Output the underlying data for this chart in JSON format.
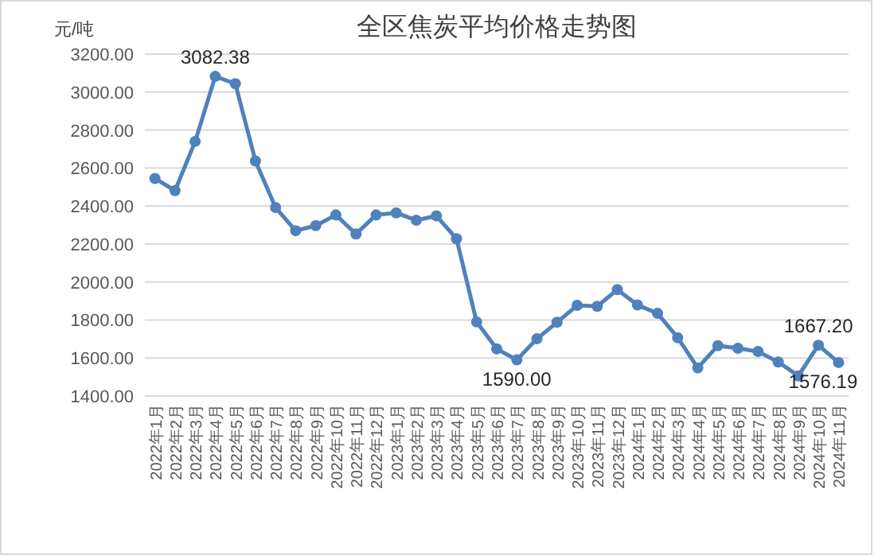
{
  "chart_data": {
    "type": "line",
    "title": "全区焦炭平均价格走势图",
    "ylabel": "元/吨",
    "categories": [
      "2022年1月",
      "2022年2月",
      "2022年3月",
      "2022年4月",
      "2022年5月",
      "2022年6月",
      "2022年7月",
      "2022年8月",
      "2022年9月",
      "2022年10月",
      "2022年11月",
      "2022年12月",
      "2023年1月",
      "2023年2月",
      "2023年3月",
      "2023年4月",
      "2023年5月",
      "2023年6月",
      "2023年7月",
      "2023年8月",
      "2023年9月",
      "2023年10月",
      "2023年11月",
      "2023年12月",
      "2024年1月",
      "2024年2月",
      "2024年3月",
      "2024年4月",
      "2024年5月",
      "2024年6月",
      "2024年7月",
      "2024年8月",
      "2024年9月",
      "2024年10月",
      "2024年11月"
    ],
    "values": [
      2545,
      2481,
      2740,
      3082.38,
      3044,
      2637,
      2392,
      2270,
      2297,
      2353,
      2253,
      2353,
      2364,
      2325,
      2348,
      2228,
      1790,
      1648,
      1590.0,
      1701,
      1788,
      1877,
      1872,
      1960,
      1879,
      1835,
      1707,
      1548,
      1665,
      1651,
      1634,
      1579,
      1506,
      1667.2,
      1576.19
    ],
    "value_labels": [
      null,
      null,
      null,
      "3082.38",
      null,
      null,
      null,
      null,
      null,
      null,
      null,
      null,
      null,
      null,
      null,
      null,
      null,
      null,
      "1590.00",
      null,
      null,
      null,
      null,
      null,
      null,
      null,
      null,
      null,
      null,
      null,
      null,
      null,
      null,
      "1667.20",
      "1576.19"
    ],
    "color": "#4f81bd",
    "marker": "circle",
    "grid": "y",
    "ylim": [
      1400,
      3200
    ],
    "yticks": [
      {
        "value": 1400,
        "label": "1400.00"
      },
      {
        "value": 1600,
        "label": "1600.00"
      },
      {
        "value": 1800,
        "label": "1800.00"
      },
      {
        "value": 2000,
        "label": "2000.00"
      },
      {
        "value": 2200,
        "label": "2200.00"
      },
      {
        "value": 2400,
        "label": "2400.00"
      },
      {
        "value": 2600,
        "label": "2600.00"
      },
      {
        "value": 2800,
        "label": "2800.00"
      },
      {
        "value": 3000,
        "label": "3000.00"
      },
      {
        "value": 3200,
        "label": "3200.00"
      }
    ]
  }
}
